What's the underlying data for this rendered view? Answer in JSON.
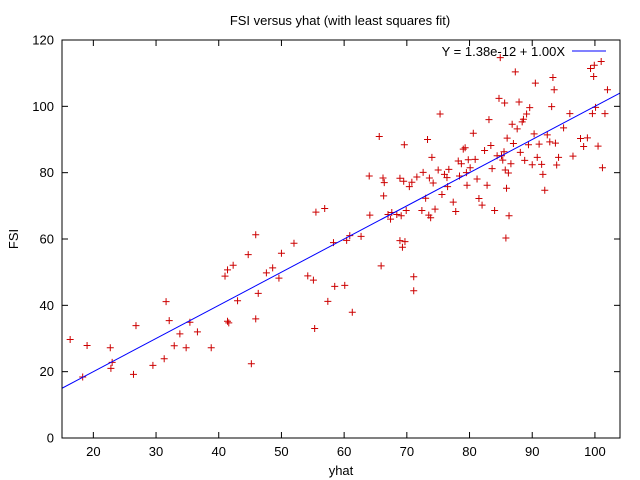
{
  "chart_data": {
    "type": "scatter",
    "title": "FSI versus yhat (with least squares fit)",
    "xlabel": "yhat",
    "ylabel": "FSI",
    "xlim": [
      15,
      104
    ],
    "ylim": [
      0,
      120
    ],
    "xticks": [
      20,
      30,
      40,
      50,
      60,
      70,
      80,
      90,
      100
    ],
    "yticks": [
      0,
      20,
      40,
      60,
      80,
      100,
      120
    ],
    "grid": false,
    "legend_position": "top-right",
    "series": [
      {
        "name": "",
        "kind": "points",
        "marker": "plus",
        "color": "#cc0000",
        "points": [
          [
            16.3,
            29.7
          ],
          [
            18.3,
            18.4
          ],
          [
            19.0,
            27.9
          ],
          [
            22.7,
            27.2
          ],
          [
            22.8,
            21.0
          ],
          [
            23.0,
            22.8
          ],
          [
            26.4,
            19.2
          ],
          [
            26.8,
            33.9
          ],
          [
            29.5,
            21.9
          ],
          [
            31.3,
            23.9
          ],
          [
            31.6,
            41.1
          ],
          [
            32.1,
            35.4
          ],
          [
            32.9,
            27.8
          ],
          [
            33.8,
            31.4
          ],
          [
            34.8,
            27.2
          ],
          [
            35.4,
            34.9
          ],
          [
            36.6,
            32.0
          ],
          [
            38.8,
            27.2
          ],
          [
            41.0,
            48.8
          ],
          [
            41.4,
            35.2
          ],
          [
            41.4,
            50.7
          ],
          [
            41.6,
            34.7
          ],
          [
            42.3,
            52.1
          ],
          [
            43.0,
            41.4
          ],
          [
            44.7,
            55.3
          ],
          [
            45.2,
            22.4
          ],
          [
            45.9,
            61.3
          ],
          [
            45.9,
            35.9
          ],
          [
            46.3,
            43.6
          ],
          [
            47.6,
            49.8
          ],
          [
            48.6,
            51.3
          ],
          [
            50.0,
            55.7
          ],
          [
            49.6,
            48.2
          ],
          [
            52.0,
            58.7
          ],
          [
            54.2,
            48.9
          ],
          [
            55.1,
            47.6
          ],
          [
            55.3,
            33.0
          ],
          [
            55.5,
            68.1
          ],
          [
            56.9,
            69.2
          ],
          [
            57.4,
            41.2
          ],
          [
            58.3,
            58.9
          ],
          [
            58.5,
            45.7
          ],
          [
            60.1,
            46.0
          ],
          [
            60.4,
            59.6
          ],
          [
            60.9,
            61.0
          ],
          [
            61.3,
            37.9
          ],
          [
            62.7,
            60.8
          ],
          [
            64.0,
            79.0
          ],
          [
            64.1,
            67.2
          ],
          [
            65.6,
            90.9
          ],
          [
            65.9,
            51.9
          ],
          [
            66.2,
            78.4
          ],
          [
            66.4,
            77.0
          ],
          [
            66.3,
            73.0
          ],
          [
            67.0,
            67.4
          ],
          [
            67.4,
            66.0
          ],
          [
            67.6,
            68.0
          ],
          [
            68.4,
            67.4
          ],
          [
            68.9,
            78.3
          ],
          [
            68.9,
            59.5
          ],
          [
            69.3,
            57.5
          ],
          [
            69.1,
            67.0
          ],
          [
            69.5,
            77.4
          ],
          [
            69.6,
            88.4
          ],
          [
            69.7,
            59.2
          ],
          [
            69.9,
            68.6
          ],
          [
            70.4,
            75.8
          ],
          [
            70.8,
            77.1
          ],
          [
            71.1,
            48.6
          ],
          [
            71.1,
            44.4
          ],
          [
            71.6,
            78.7
          ],
          [
            72.4,
            68.6
          ],
          [
            72.6,
            80.1
          ],
          [
            73.0,
            72.3
          ],
          [
            73.3,
            90.0
          ],
          [
            73.5,
            67.2
          ],
          [
            73.6,
            78.4
          ],
          [
            73.8,
            66.4
          ],
          [
            74.0,
            84.6
          ],
          [
            74.2,
            76.9
          ],
          [
            74.5,
            69.0
          ],
          [
            75.0,
            80.8
          ],
          [
            75.3,
            97.7
          ],
          [
            75.6,
            73.4
          ],
          [
            76.0,
            79.5
          ],
          [
            76.4,
            78.5
          ],
          [
            76.5,
            75.8
          ],
          [
            76.7,
            81.0
          ],
          [
            77.4,
            71.1
          ],
          [
            77.8,
            68.3
          ],
          [
            78.2,
            83.5
          ],
          [
            78.4,
            79.0
          ],
          [
            78.7,
            82.7
          ],
          [
            79.0,
            87.1
          ],
          [
            79.3,
            87.5
          ],
          [
            79.5,
            80.0
          ],
          [
            79.6,
            76.2
          ],
          [
            79.8,
            83.9
          ],
          [
            80.1,
            81.5
          ],
          [
            80.6,
            91.9
          ],
          [
            80.9,
            84.0
          ],
          [
            81.2,
            78.1
          ],
          [
            81.5,
            72.2
          ],
          [
            82.0,
            70.2
          ],
          [
            82.4,
            86.7
          ],
          [
            82.8,
            76.2
          ],
          [
            83.1,
            96.0
          ],
          [
            83.4,
            88.2
          ],
          [
            83.6,
            81.2
          ],
          [
            84.0,
            68.6
          ],
          [
            84.4,
            85.1
          ],
          [
            84.7,
            102.4
          ],
          [
            84.9,
            114.7
          ],
          [
            85.1,
            85.1
          ],
          [
            85.3,
            83.8
          ],
          [
            85.5,
            86.3
          ],
          [
            85.7,
            80.8
          ],
          [
            85.8,
            60.3
          ],
          [
            85.6,
            101.0
          ],
          [
            85.9,
            75.3
          ],
          [
            86.0,
            90.4
          ],
          [
            86.2,
            79.9
          ],
          [
            86.3,
            67.0
          ],
          [
            86.6,
            82.7
          ],
          [
            86.8,
            94.6
          ],
          [
            87.0,
            88.8
          ],
          [
            87.3,
            110.4
          ],
          [
            87.6,
            93.2
          ],
          [
            87.9,
            101.3
          ],
          [
            88.1,
            86.1
          ],
          [
            88.4,
            95.3
          ],
          [
            88.6,
            96.1
          ],
          [
            88.8,
            83.7
          ],
          [
            89.1,
            97.7
          ],
          [
            89.4,
            88.4
          ],
          [
            89.6,
            99.6
          ],
          [
            90.0,
            82.4
          ],
          [
            90.3,
            91.7
          ],
          [
            90.5,
            107.0
          ],
          [
            90.8,
            84.6
          ],
          [
            91.1,
            88.6
          ],
          [
            91.5,
            82.5
          ],
          [
            91.7,
            79.5
          ],
          [
            92.0,
            74.7
          ],
          [
            92.4,
            91.4
          ],
          [
            92.8,
            89.3
          ],
          [
            93.1,
            99.9
          ],
          [
            93.3,
            108.7
          ],
          [
            93.5,
            105.0
          ],
          [
            93.7,
            88.9
          ],
          [
            93.9,
            82.3
          ],
          [
            94.2,
            84.6
          ],
          [
            95.0,
            93.5
          ],
          [
            96.0,
            97.8
          ],
          [
            96.5,
            85.0
          ],
          [
            97.7,
            90.3
          ],
          [
            98.2,
            87.9
          ],
          [
            98.8,
            90.5
          ],
          [
            99.3,
            111.4
          ],
          [
            99.6,
            97.8
          ],
          [
            99.8,
            109.0
          ],
          [
            99.9,
            112.4
          ],
          [
            100.1,
            99.7
          ],
          [
            100.5,
            88.0
          ],
          [
            101.0,
            113.5
          ],
          [
            101.2,
            81.5
          ],
          [
            101.6,
            97.8
          ],
          [
            102.0,
            105.0
          ]
        ]
      },
      {
        "name": "Y = 1.38e-12 + 1.00X",
        "kind": "line",
        "color": "#0000ff",
        "intercept": 1.38e-12,
        "slope": 1.0
      }
    ]
  }
}
